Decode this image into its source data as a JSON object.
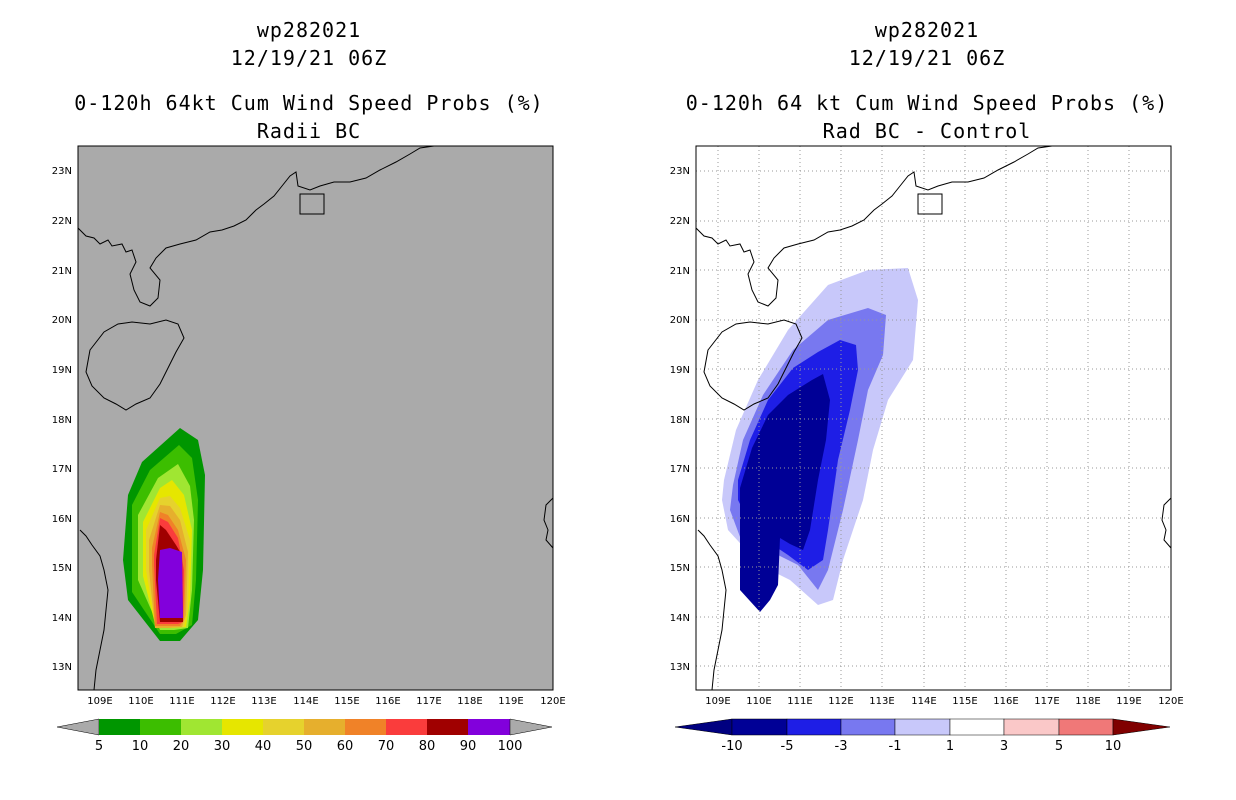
{
  "panels": [
    {
      "storm_id": "wp282021",
      "datetime": "12/19/21 06Z",
      "title": "0-120h 64kt Cum Wind Speed Probs (%)",
      "subtitle": "Radii BC",
      "background": "#aaaaaa",
      "gridlines": false,
      "lat_labels": [
        "23N",
        "22N",
        "21N",
        "20N",
        "19N",
        "18N",
        "17N",
        "16N",
        "15N",
        "14N",
        "13N"
      ],
      "lon_labels": [
        "109E",
        "110E",
        "111E",
        "112E",
        "113E",
        "114E",
        "115E",
        "116E",
        "117E",
        "118E",
        "119E",
        "120E"
      ],
      "colorbar": {
        "colors": [
          "#009600",
          "#3cbe00",
          "#a0e632",
          "#e6e600",
          "#e6d22d",
          "#e6af2d",
          "#f08228",
          "#fa3c3c",
          "#a00000",
          "#8200dc"
        ],
        "labels": [
          "5",
          "10",
          "20",
          "30",
          "40",
          "50",
          "60",
          "70",
          "80",
          "90",
          "100"
        ],
        "end_left": "#aaaaaa",
        "end_right": "#aaaaaa"
      }
    },
    {
      "storm_id": "wp282021",
      "datetime": "12/19/21 06Z",
      "title": "0-120h 64 kt Cum Wind Speed Probs (%)",
      "subtitle": "Rad BC - Control",
      "background": "#ffffff",
      "gridlines": true,
      "lat_labels": [
        "23N",
        "22N",
        "21N",
        "20N",
        "19N",
        "18N",
        "17N",
        "16N",
        "15N",
        "14N",
        "13N"
      ],
      "lon_labels": [
        "109E",
        "110E",
        "111E",
        "112E",
        "113E",
        "114E",
        "115E",
        "116E",
        "117E",
        "118E",
        "119E",
        "120E"
      ],
      "colorbar": {
        "colors": [
          "#000096",
          "#1e1ee6",
          "#7878f0",
          "#c8c8fa",
          "#ffffff",
          "#fac8c8",
          "#f07878",
          "#f01e1e"
        ],
        "labels": [
          "-10",
          "-5",
          "-3",
          "-1",
          "1",
          "3",
          "5",
          "10"
        ],
        "end_left": "#000080",
        "end_right": "#800000"
      }
    }
  ]
}
